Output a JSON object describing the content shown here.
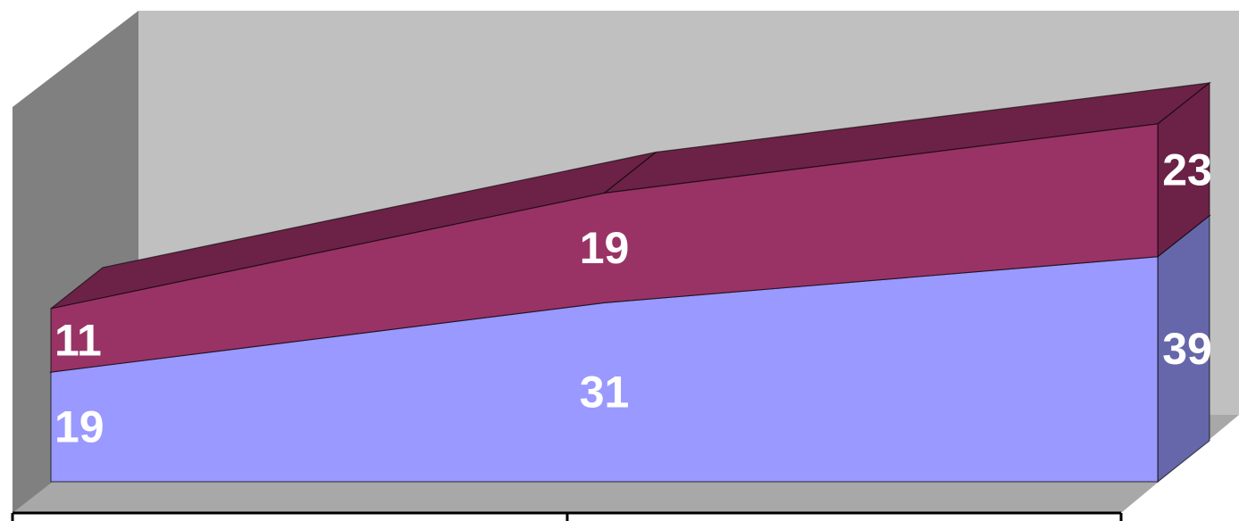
{
  "chart_data": {
    "type": "area",
    "stacked": true,
    "three_d": true,
    "title": "",
    "xlabel": "",
    "ylabel": "",
    "categories": [
      "",
      "",
      ""
    ],
    "series": [
      {
        "values": [
          19,
          31,
          39
        ],
        "color": "#9999ff",
        "side_color": "#6666aa"
      },
      {
        "values": [
          11,
          19,
          23
        ],
        "color": "#993366",
        "side_color": "#6b2246"
      }
    ],
    "data_labels": true,
    "gridlines": false,
    "legend": "none",
    "ylim": [
      0,
      70
    ],
    "colors": {
      "back_wall": "#c0c0c0",
      "side_wall": "#808080",
      "floor": "#a8a8a8"
    }
  }
}
